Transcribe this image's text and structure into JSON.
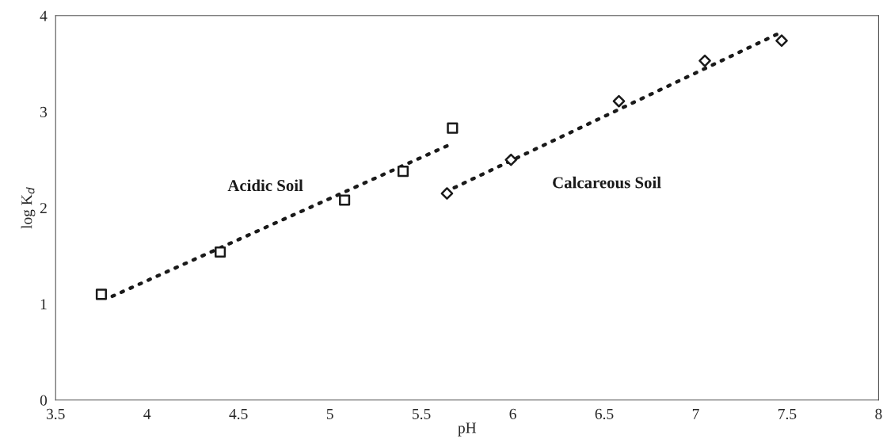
{
  "chart_data": {
    "type": "scatter",
    "xlabel": "pH",
    "ylabel": "log K$_{d}$",
    "xlim": [
      3.5,
      8
    ],
    "xticks": [
      3.5,
      4,
      4.5,
      5,
      5.5,
      6,
      6.5,
      7,
      7.5,
      8
    ],
    "ylim": [
      0,
      4
    ],
    "yticks": [
      0,
      1,
      2,
      3,
      4
    ],
    "grid": false,
    "legend": false,
    "series": [
      {
        "name": "Acidic Soil",
        "marker": "square",
        "color": "#1a1a1a",
        "x": [
          3.75,
          4.4,
          5.08,
          5.4,
          5.67
        ],
        "values": [
          1.1,
          1.54,
          2.08,
          2.38,
          2.83
        ]
      },
      {
        "name": "Calcareous Soil",
        "marker": "diamond",
        "color": "#1a1a1a",
        "x": [
          5.64,
          5.99,
          6.58,
          7.05,
          7.47
        ],
        "values": [
          2.15,
          2.5,
          3.11,
          3.53,
          3.74
        ]
      },
      {
        "type": "line",
        "line_style": "dotted",
        "marker": "none",
        "color": "#1a1a1a",
        "x": [
          3.81,
          5.67
        ],
        "values": [
          1.08,
          2.67
        ]
      },
      {
        "type": "line",
        "line_style": "dotted",
        "marker": "none",
        "color": "#1a1a1a",
        "x": [
          5.68,
          7.46
        ],
        "values": [
          2.21,
          3.82
        ]
      }
    ]
  }
}
